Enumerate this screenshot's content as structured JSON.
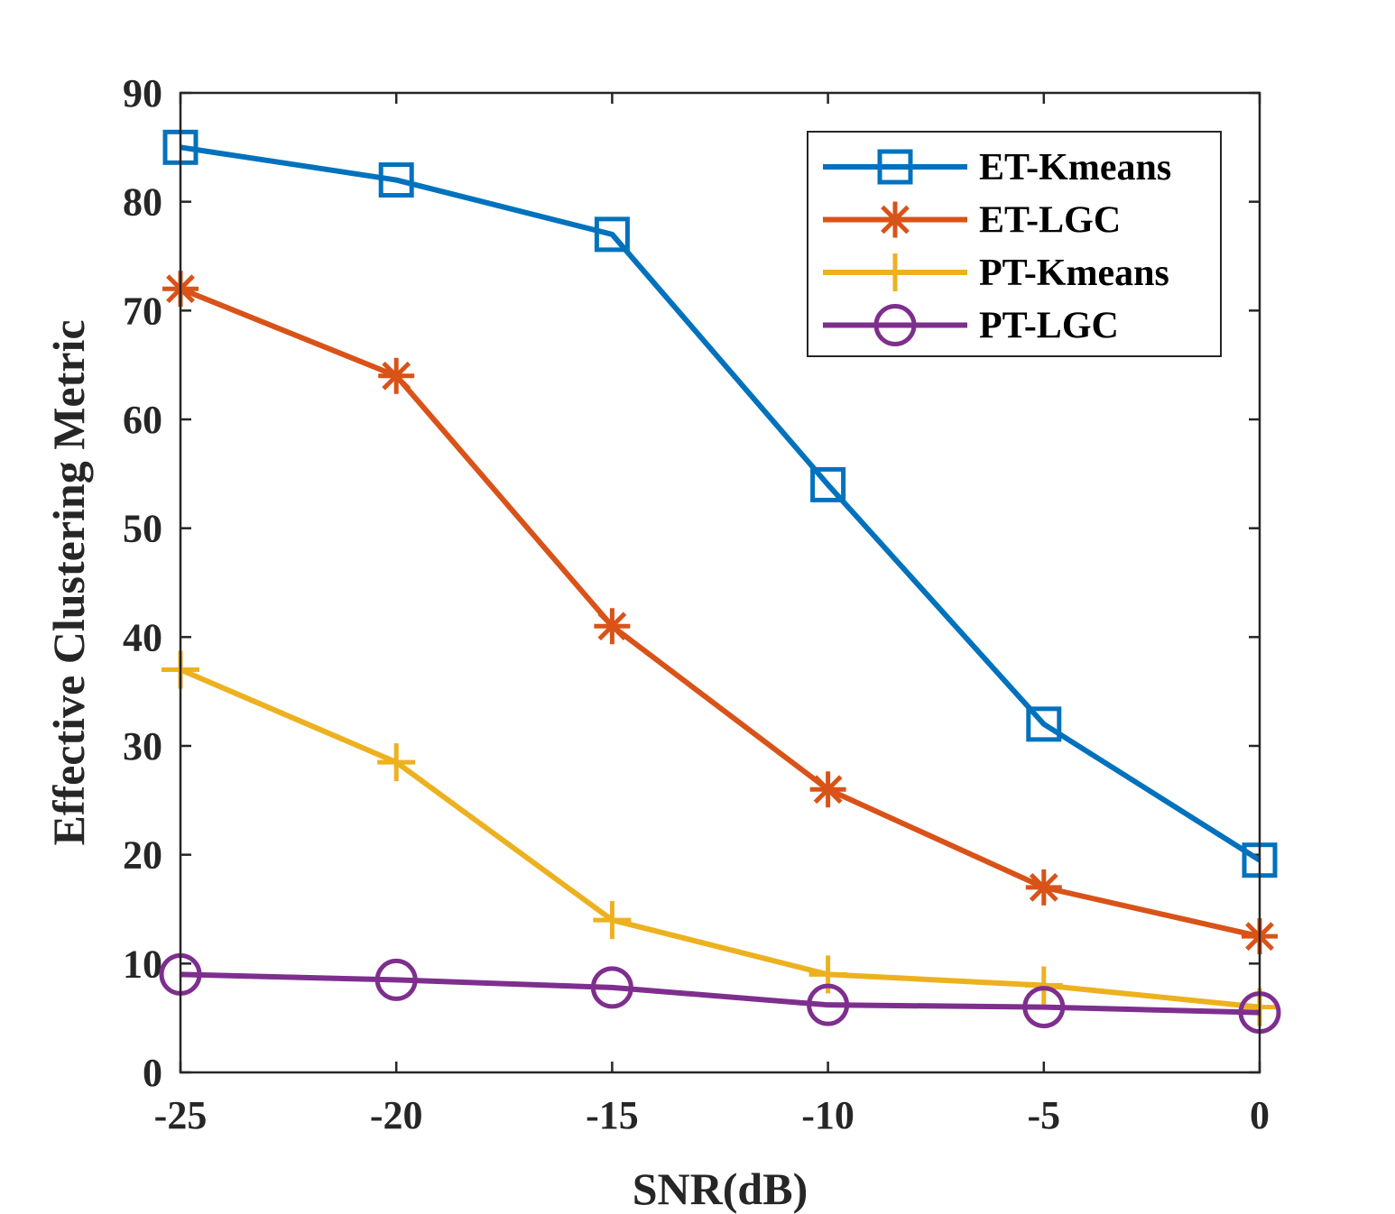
{
  "chart_data": {
    "type": "line",
    "title": "",
    "xlabel": "SNR(dB)",
    "ylabel": "Effective Clustering Metric",
    "x": [
      -25,
      -20,
      -15,
      -10,
      -5,
      0
    ],
    "xticks": [
      -25,
      -20,
      -15,
      -10,
      -5,
      0
    ],
    "yticks": [
      0,
      10,
      20,
      30,
      40,
      50,
      60,
      70,
      80,
      90
    ],
    "xlim": [
      -25,
      0
    ],
    "ylim": [
      0,
      90
    ],
    "grid": false,
    "legend_position": "top-right",
    "series": [
      {
        "name": "ET-Kmeans",
        "color": "#0072BD",
        "marker": "square",
        "values": [
          85,
          82,
          77,
          54,
          32,
          19.5
        ]
      },
      {
        "name": "ET-LGC",
        "color": "#D95319",
        "marker": "asterisk",
        "values": [
          72,
          64,
          41,
          26,
          17,
          12.5
        ]
      },
      {
        "name": "PT-Kmeans",
        "color": "#EDB120",
        "marker": "plus",
        "values": [
          37,
          28.5,
          14,
          9,
          8,
          6
        ]
      },
      {
        "name": "PT-LGC",
        "color": "#7E2F8E",
        "marker": "circle",
        "values": [
          9,
          8.5,
          7.8,
          6.2,
          6,
          5.5
        ]
      }
    ]
  }
}
